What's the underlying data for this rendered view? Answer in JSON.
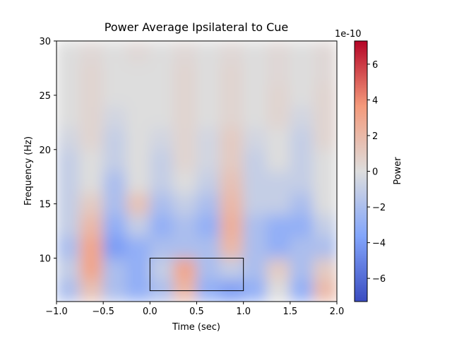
{
  "chart_data": {
    "type": "heatmap",
    "title": "Power Average Ipsilateral to Cue",
    "xlabel": "Time (sec)",
    "ylabel": "Frequency (Hz)",
    "xlim": [
      -1,
      2
    ],
    "ylim": [
      6,
      30
    ],
    "xticks": [
      {
        "value": -1,
        "label": "−1.0"
      },
      {
        "value": -0.5,
        "label": "−0.5"
      },
      {
        "value": 0,
        "label": "0.0"
      },
      {
        "value": 0.5,
        "label": "0.5"
      },
      {
        "value": 1,
        "label": "1.0"
      },
      {
        "value": 1.5,
        "label": "1.5"
      },
      {
        "value": 2,
        "label": "2.0"
      }
    ],
    "yticks": [
      10,
      15,
      20,
      25,
      30
    ],
    "x": [
      -0.875,
      -0.625,
      -0.375,
      -0.125,
      0.125,
      0.375,
      0.625,
      0.875,
      1.125,
      1.375,
      1.625,
      1.875
    ],
    "y": [
      7,
      9,
      11,
      13,
      15,
      17,
      19,
      21,
      23,
      25,
      27,
      29
    ],
    "z": [
      [
        -2,
        1.5,
        -2,
        -3,
        -2,
        2,
        -3,
        -4,
        -3,
        0,
        -3,
        2
      ],
      [
        -1,
        3,
        -2,
        -3,
        -1,
        3,
        -2,
        -1,
        -2,
        1,
        -2,
        1
      ],
      [
        -2,
        3,
        -4,
        -3,
        -2,
        -2,
        -2,
        2,
        -2,
        -3,
        -2,
        -2
      ],
      [
        -1,
        2,
        -3,
        -1,
        -3,
        -2,
        -3,
        2.5,
        -2,
        -3,
        -3,
        -1
      ],
      [
        -1,
        1,
        -2,
        1.5,
        -2,
        -1,
        -2,
        2,
        -1,
        -1,
        -2,
        0
      ],
      [
        -1,
        0,
        -2,
        0,
        -1,
        0,
        -1,
        1.5,
        -1,
        -1,
        -1,
        0
      ],
      [
        -1,
        0,
        -1,
        0,
        -1,
        0.5,
        -0.5,
        1,
        -1,
        0,
        -1,
        0
      ],
      [
        -0.5,
        0.5,
        -1,
        0,
        -0.5,
        0.5,
        -0.5,
        1,
        -0.5,
        0,
        -1,
        0.5
      ],
      [
        0,
        0.5,
        -0.5,
        0,
        0,
        0.5,
        0,
        0.5,
        0,
        0.5,
        -0.5,
        0.5
      ],
      [
        0,
        0.5,
        0,
        0,
        0,
        0.5,
        0,
        0.5,
        0,
        0.5,
        0,
        0.5
      ],
      [
        0,
        0.5,
        0,
        0,
        0,
        0.5,
        0,
        0.5,
        0,
        0.3,
        0,
        0.3
      ],
      [
        0,
        0.3,
        0,
        0.3,
        0,
        0.3,
        0,
        0.3,
        0,
        0.3,
        0,
        0.3
      ]
    ],
    "colormap": "coolwarm",
    "clim": [
      -7.3,
      7.3
    ],
    "colorbar_ticks": [
      {
        "value": -6,
        "label": "−6"
      },
      {
        "value": -4,
        "label": "−4"
      },
      {
        "value": -2,
        "label": "−2"
      },
      0,
      2,
      4,
      6
    ],
    "colorbar_offset": "1e-10",
    "colorbar_label": "Power",
    "box": {
      "x": [
        0,
        1
      ],
      "y": [
        7,
        10
      ],
      "color": "#000000"
    }
  }
}
